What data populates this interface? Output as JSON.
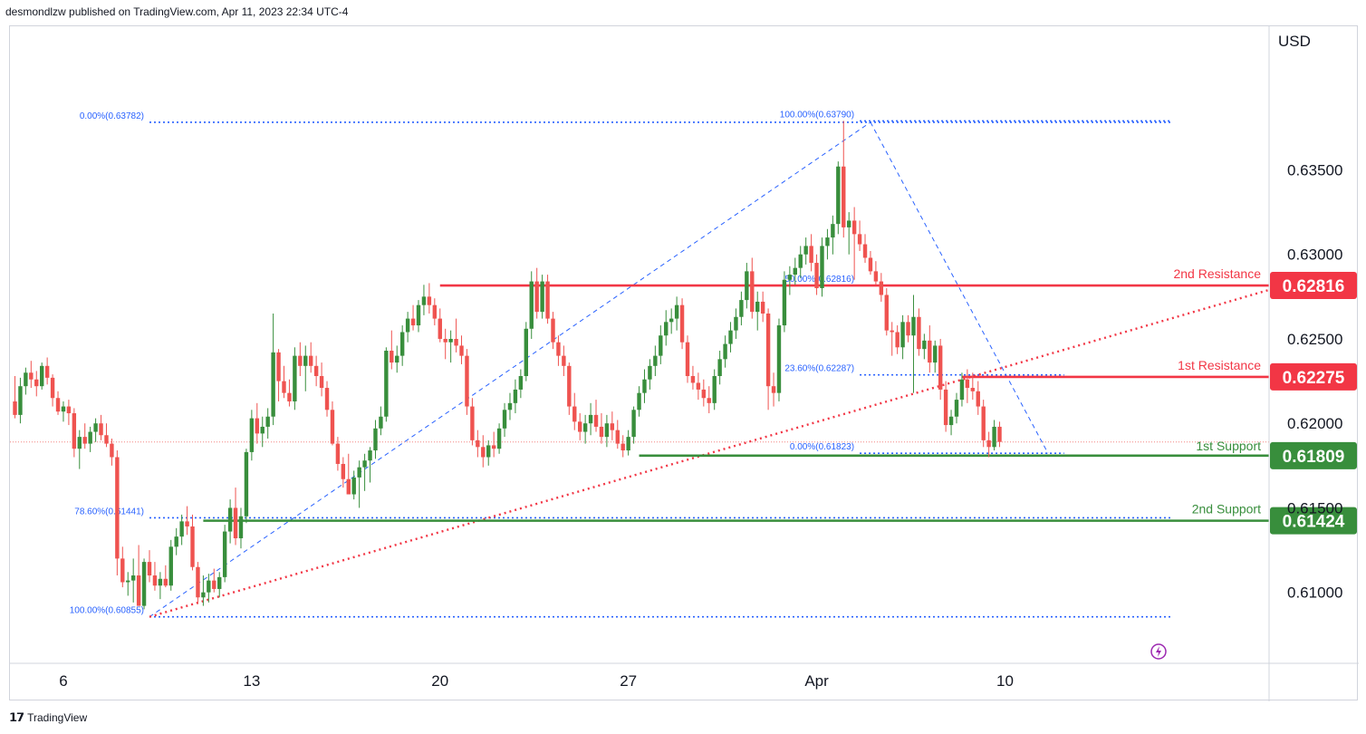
{
  "header": {
    "text": "desmondlzw published on TradingView.com, Apr 11, 2023 22:34 UTC-4"
  },
  "footer": {
    "brand": "TradingView",
    "logo": "tradingview-logo"
  },
  "colors": {
    "up": "#388e3c",
    "down": "#ef5350",
    "resistance": "#f23645",
    "support": "#388e3c",
    "fib": "#2962ff",
    "axis_text": "#131722"
  },
  "chart_data": {
    "type": "candlestick",
    "currency": "USD",
    "ylim": [
      0.6058,
      0.6435
    ],
    "y_ticks": [
      {
        "value": 0.635,
        "label": "0.63500"
      },
      {
        "value": 0.63,
        "label": "0.63000"
      },
      {
        "value": 0.625,
        "label": "0.62500"
      },
      {
        "value": 0.62,
        "label": "0.62000"
      },
      {
        "value": 0.615,
        "label": "0.61500"
      },
      {
        "value": 0.61,
        "label": "0.61000"
      }
    ],
    "x_ticks": [
      {
        "label": "6",
        "index": 9
      },
      {
        "label": "13",
        "index": 44
      },
      {
        "label": "20",
        "index": 79
      },
      {
        "label": "27",
        "index": 114
      },
      {
        "label": "Apr",
        "index": 149
      },
      {
        "label": "10",
        "index": 184
      }
    ],
    "candles": [
      [
        0.6213,
        0.6228,
        0.6203,
        0.6205
      ],
      [
        0.6205,
        0.6227,
        0.62,
        0.6222
      ],
      [
        0.6222,
        0.6233,
        0.6217,
        0.623
      ],
      [
        0.623,
        0.6237,
        0.6221,
        0.6226
      ],
      [
        0.6226,
        0.6231,
        0.6216,
        0.6222
      ],
      [
        0.6222,
        0.6236,
        0.622,
        0.6234
      ],
      [
        0.6234,
        0.6239,
        0.6223,
        0.6227
      ],
      [
        0.6227,
        0.6229,
        0.621,
        0.6215
      ],
      [
        0.6215,
        0.6219,
        0.6205,
        0.6207
      ],
      [
        0.6207,
        0.6213,
        0.6201,
        0.621
      ],
      [
        0.621,
        0.6214,
        0.6199,
        0.6206
      ],
      [
        0.6206,
        0.6209,
        0.618,
        0.6185
      ],
      [
        0.6185,
        0.6196,
        0.6173,
        0.6192
      ],
      [
        0.6192,
        0.62,
        0.6185,
        0.6188
      ],
      [
        0.6188,
        0.6198,
        0.6183,
        0.6195
      ],
      [
        0.6195,
        0.6203,
        0.6189,
        0.62
      ],
      [
        0.62,
        0.6205,
        0.619,
        0.6193
      ],
      [
        0.6193,
        0.62,
        0.6186,
        0.6188
      ],
      [
        0.6188,
        0.6191,
        0.6175,
        0.618
      ],
      [
        0.618,
        0.6184,
        0.611,
        0.612
      ],
      [
        0.612,
        0.6127,
        0.6103,
        0.6106
      ],
      [
        0.6106,
        0.6112,
        0.6098,
        0.6107
      ],
      [
        0.6107,
        0.612,
        0.6094,
        0.611
      ],
      [
        0.611,
        0.6128,
        0.6092,
        0.6092
      ],
      [
        0.6092,
        0.612,
        0.609,
        0.6118
      ],
      [
        0.6118,
        0.6125,
        0.6106,
        0.611
      ],
      [
        0.611,
        0.6118,
        0.6101,
        0.6104
      ],
      [
        0.6104,
        0.6112,
        0.6096,
        0.6108
      ],
      [
        0.6108,
        0.6116,
        0.6103,
        0.6104
      ],
      [
        0.6104,
        0.6131,
        0.6101,
        0.6127
      ],
      [
        0.6127,
        0.6138,
        0.6122,
        0.6133
      ],
      [
        0.6133,
        0.6146,
        0.6128,
        0.6142
      ],
      [
        0.6142,
        0.6151,
        0.6134,
        0.6139
      ],
      [
        0.6139,
        0.6146,
        0.6113,
        0.6115
      ],
      [
        0.6115,
        0.6118,
        0.6093,
        0.6097
      ],
      [
        0.6097,
        0.611,
        0.6092,
        0.61
      ],
      [
        0.61,
        0.6111,
        0.6094,
        0.6107
      ],
      [
        0.6107,
        0.6114,
        0.61,
        0.6102
      ],
      [
        0.6102,
        0.6112,
        0.6097,
        0.6109
      ],
      [
        0.6109,
        0.614,
        0.6106,
        0.6136
      ],
      [
        0.6136,
        0.6155,
        0.6129,
        0.615
      ],
      [
        0.615,
        0.6162,
        0.6128,
        0.6132
      ],
      [
        0.6132,
        0.615,
        0.6126,
        0.6145
      ],
      [
        0.6145,
        0.6185,
        0.6141,
        0.6183
      ],
      [
        0.6183,
        0.6208,
        0.6178,
        0.6203
      ],
      [
        0.6203,
        0.6212,
        0.6188,
        0.6194
      ],
      [
        0.6194,
        0.6204,
        0.6186,
        0.6198
      ],
      [
        0.6198,
        0.6209,
        0.6191,
        0.6204
      ],
      [
        0.6204,
        0.6265,
        0.6199,
        0.6242
      ],
      [
        0.6242,
        0.6244,
        0.6213,
        0.6225
      ],
      [
        0.6225,
        0.6234,
        0.6215,
        0.6218
      ],
      [
        0.6218,
        0.6226,
        0.621,
        0.6213
      ],
      [
        0.6213,
        0.6245,
        0.6208,
        0.624
      ],
      [
        0.624,
        0.6248,
        0.6228,
        0.6234
      ],
      [
        0.6234,
        0.6246,
        0.6219,
        0.624
      ],
      [
        0.624,
        0.6248,
        0.623,
        0.6234
      ],
      [
        0.6234,
        0.624,
        0.6222,
        0.6228
      ],
      [
        0.6228,
        0.6236,
        0.6216,
        0.6221
      ],
      [
        0.6221,
        0.6225,
        0.6204,
        0.6208
      ],
      [
        0.6208,
        0.6213,
        0.6187,
        0.6188
      ],
      [
        0.6188,
        0.6192,
        0.6172,
        0.6176
      ],
      [
        0.6176,
        0.618,
        0.6162,
        0.6167
      ],
      [
        0.6167,
        0.6182,
        0.6158,
        0.6158
      ],
      [
        0.6158,
        0.6172,
        0.6155,
        0.6168
      ],
      [
        0.6168,
        0.6178,
        0.615,
        0.6174
      ],
      [
        0.6174,
        0.6182,
        0.616,
        0.6178
      ],
      [
        0.6178,
        0.6186,
        0.6165,
        0.6184
      ],
      [
        0.6184,
        0.6202,
        0.6179,
        0.6197
      ],
      [
        0.6197,
        0.621,
        0.6193,
        0.6204
      ],
      [
        0.6204,
        0.6245,
        0.6201,
        0.6243
      ],
      [
        0.6243,
        0.6255,
        0.6232,
        0.6236
      ],
      [
        0.6236,
        0.6246,
        0.623,
        0.624
      ],
      [
        0.624,
        0.6258,
        0.6234,
        0.6254
      ],
      [
        0.6254,
        0.6266,
        0.6248,
        0.6262
      ],
      [
        0.6262,
        0.627,
        0.6255,
        0.6258
      ],
      [
        0.6258,
        0.6273,
        0.6254,
        0.627
      ],
      [
        0.627,
        0.6282,
        0.6264,
        0.6275
      ],
      [
        0.6275,
        0.6283,
        0.6265,
        0.627
      ],
      [
        0.627,
        0.6274,
        0.6258,
        0.6262
      ],
      [
        0.6262,
        0.6268,
        0.6248,
        0.625
      ],
      [
        0.625,
        0.6256,
        0.6238,
        0.6248
      ],
      [
        0.6248,
        0.6255,
        0.6236,
        0.625
      ],
      [
        0.625,
        0.6262,
        0.6242,
        0.6246
      ],
      [
        0.6246,
        0.6252,
        0.6235,
        0.624
      ],
      [
        0.624,
        0.6244,
        0.6205,
        0.621
      ],
      [
        0.621,
        0.6215,
        0.6187,
        0.619
      ],
      [
        0.619,
        0.6196,
        0.618,
        0.6186
      ],
      [
        0.6186,
        0.6193,
        0.6174,
        0.618
      ],
      [
        0.618,
        0.619,
        0.6175,
        0.6187
      ],
      [
        0.6187,
        0.6195,
        0.618,
        0.6185
      ],
      [
        0.6185,
        0.62,
        0.6182,
        0.6197
      ],
      [
        0.6197,
        0.6212,
        0.6192,
        0.6208
      ],
      [
        0.6208,
        0.6218,
        0.6202,
        0.6212
      ],
      [
        0.6212,
        0.6226,
        0.6206,
        0.622
      ],
      [
        0.622,
        0.6232,
        0.6215,
        0.6228
      ],
      [
        0.6228,
        0.626,
        0.6225,
        0.6256
      ],
      [
        0.6256,
        0.629,
        0.625,
        0.6284
      ],
      [
        0.6284,
        0.6292,
        0.6262,
        0.6266
      ],
      [
        0.6266,
        0.6288,
        0.6262,
        0.6284
      ],
      [
        0.6284,
        0.6288,
        0.6259,
        0.6262
      ],
      [
        0.6262,
        0.6266,
        0.6244,
        0.6248
      ],
      [
        0.6248,
        0.6252,
        0.6234,
        0.624
      ],
      [
        0.624,
        0.6246,
        0.6228,
        0.6234
      ],
      [
        0.6234,
        0.6236,
        0.6205,
        0.621
      ],
      [
        0.621,
        0.6218,
        0.6196,
        0.6201
      ],
      [
        0.6201,
        0.6206,
        0.619,
        0.6195
      ],
      [
        0.6195,
        0.6205,
        0.6188,
        0.62
      ],
      [
        0.62,
        0.6212,
        0.6193,
        0.6205
      ],
      [
        0.6205,
        0.6214,
        0.6195,
        0.6198
      ],
      [
        0.6198,
        0.6206,
        0.6188,
        0.6192
      ],
      [
        0.6192,
        0.6205,
        0.6186,
        0.62
      ],
      [
        0.62,
        0.6207,
        0.619,
        0.6196
      ],
      [
        0.6196,
        0.6202,
        0.6185,
        0.6188
      ],
      [
        0.6188,
        0.6193,
        0.618,
        0.6184
      ],
      [
        0.6184,
        0.6196,
        0.6181,
        0.6192
      ],
      [
        0.6192,
        0.621,
        0.6188,
        0.6208
      ],
      [
        0.6208,
        0.6222,
        0.6204,
        0.6218
      ],
      [
        0.6218,
        0.6232,
        0.6212,
        0.6226
      ],
      [
        0.6226,
        0.6238,
        0.622,
        0.6234
      ],
      [
        0.6234,
        0.6246,
        0.6228,
        0.624
      ],
      [
        0.624,
        0.6258,
        0.6235,
        0.6252
      ],
      [
        0.6252,
        0.6267,
        0.6246,
        0.626
      ],
      [
        0.626,
        0.6268,
        0.6253,
        0.6262
      ],
      [
        0.6262,
        0.6275,
        0.6255,
        0.627
      ],
      [
        0.627,
        0.6274,
        0.6244,
        0.6248
      ],
      [
        0.6248,
        0.6252,
        0.6224,
        0.6228
      ],
      [
        0.6228,
        0.6234,
        0.622,
        0.6224
      ],
      [
        0.6224,
        0.623,
        0.6214,
        0.622
      ],
      [
        0.622,
        0.6226,
        0.621,
        0.6215
      ],
      [
        0.6215,
        0.6222,
        0.6206,
        0.6212
      ],
      [
        0.6212,
        0.6232,
        0.6208,
        0.6228
      ],
      [
        0.6228,
        0.6243,
        0.6223,
        0.6238
      ],
      [
        0.6238,
        0.6252,
        0.6233,
        0.6247
      ],
      [
        0.6247,
        0.626,
        0.6242,
        0.6255
      ],
      [
        0.6255,
        0.6268,
        0.625,
        0.6263
      ],
      [
        0.6263,
        0.6278,
        0.6258,
        0.6273
      ],
      [
        0.6273,
        0.6295,
        0.6268,
        0.629
      ],
      [
        0.629,
        0.6298,
        0.6262,
        0.6266
      ],
      [
        0.6266,
        0.6278,
        0.6255,
        0.6272
      ],
      [
        0.6272,
        0.6278,
        0.626,
        0.6265
      ],
      [
        0.6265,
        0.6268,
        0.6208,
        0.6222
      ],
      [
        0.6222,
        0.623,
        0.621,
        0.6218
      ],
      [
        0.6218,
        0.6262,
        0.6213,
        0.6258
      ],
      [
        0.6258,
        0.629,
        0.6254,
        0.6285
      ],
      [
        0.6285,
        0.6293,
        0.6276,
        0.6288
      ],
      [
        0.6288,
        0.6298,
        0.6282,
        0.6292
      ],
      [
        0.6292,
        0.6305,
        0.6286,
        0.63
      ],
      [
        0.63,
        0.631,
        0.6294,
        0.6305
      ],
      [
        0.6305,
        0.6312,
        0.629,
        0.6295
      ],
      [
        0.6295,
        0.63,
        0.6276,
        0.628
      ],
      [
        0.628,
        0.631,
        0.6275,
        0.6305
      ],
      [
        0.6305,
        0.6315,
        0.6297,
        0.631
      ],
      [
        0.631,
        0.6323,
        0.63,
        0.6318
      ],
      [
        0.6318,
        0.6355,
        0.6312,
        0.6352
      ],
      [
        0.6352,
        0.6379,
        0.631,
        0.6316
      ],
      [
        0.6316,
        0.6325,
        0.63,
        0.632
      ],
      [
        0.632,
        0.6328,
        0.6285,
        0.6312
      ],
      [
        0.6312,
        0.632,
        0.6302,
        0.6306
      ],
      [
        0.6306,
        0.6312,
        0.6295,
        0.6298
      ],
      [
        0.6298,
        0.6302,
        0.6288,
        0.629
      ],
      [
        0.629,
        0.6296,
        0.6282,
        0.6284
      ],
      [
        0.6284,
        0.6289,
        0.6272,
        0.6276
      ],
      [
        0.6276,
        0.628,
        0.6252,
        0.6255
      ],
      [
        0.6255,
        0.626,
        0.624,
        0.6254
      ],
      [
        0.6254,
        0.6258,
        0.6241,
        0.6245
      ],
      [
        0.6245,
        0.6264,
        0.6238,
        0.626
      ],
      [
        0.626,
        0.6264,
        0.6248,
        0.6252
      ],
      [
        0.6252,
        0.6276,
        0.6218,
        0.6263
      ],
      [
        0.6263,
        0.6268,
        0.624,
        0.6244
      ],
      [
        0.6244,
        0.6253,
        0.6238,
        0.6249
      ],
      [
        0.6249,
        0.6258,
        0.623,
        0.6236
      ],
      [
        0.6236,
        0.6249,
        0.623,
        0.6246
      ],
      [
        0.6246,
        0.625,
        0.6214,
        0.622
      ],
      [
        0.622,
        0.6225,
        0.6195,
        0.6199
      ],
      [
        0.6199,
        0.6208,
        0.6193,
        0.6204
      ],
      [
        0.6204,
        0.6218,
        0.62,
        0.6214
      ],
      [
        0.6214,
        0.623,
        0.621,
        0.6226
      ],
      [
        0.6226,
        0.6232,
        0.6212,
        0.6221
      ],
      [
        0.6221,
        0.623,
        0.6214,
        0.6219
      ],
      [
        0.6219,
        0.6225,
        0.6205,
        0.621
      ],
      [
        0.621,
        0.6214,
        0.6186,
        0.619
      ],
      [
        0.619,
        0.6195,
        0.618,
        0.6186
      ],
      [
        0.6186,
        0.6202,
        0.6184,
        0.6198
      ],
      [
        0.6198,
        0.6201,
        0.6186,
        0.6189
      ]
    ],
    "levels": [
      {
        "name": "2nd Resistance",
        "value": 0.62816,
        "label": "0.62816",
        "kind": "resistance",
        "from_index": 79
      },
      {
        "name": "1st Resistance",
        "value": 0.62275,
        "label": "0.62275",
        "kind": "resistance",
        "from_index": 176
      },
      {
        "name": "1st Support",
        "value": 0.61809,
        "label": "0.61809",
        "kind": "support",
        "from_index": 116
      },
      {
        "name": "2nd Support",
        "value": 0.61424,
        "label": "0.61424",
        "kind": "support",
        "from_index": 35
      }
    ],
    "fib_labels": [
      {
        "text": "0.00%(0.63782)",
        "value": 0.63782,
        "from_index": 25,
        "to_index": 215
      },
      {
        "text": "78.60%(0.61441)",
        "value": 0.61441,
        "from_index": 25,
        "to_index": 215
      },
      {
        "text": "100.00%(0.60855)",
        "value": 0.60855,
        "from_index": 25,
        "to_index": 215
      },
      {
        "text": "100.00%(0.63790)",
        "value": 0.6379,
        "from_index": 157,
        "to_index": 215
      },
      {
        "text": "50.00%(0.62816)",
        "value": 0.62816,
        "from_index": 157,
        "to_index": 215
      },
      {
        "text": "23.60%(0.62287)",
        "value": 0.62287,
        "from_index": 157,
        "to_index": 195
      },
      {
        "text": "0.00%(0.61823)",
        "value": 0.61823,
        "from_index": 157,
        "to_index": 195
      }
    ],
    "fib_lines": [
      {
        "from": [
          25,
          0.60855
        ],
        "to": [
          159,
          0.63782
        ]
      },
      {
        "from": [
          159,
          0.63782
        ],
        "to": [
          192,
          0.61823
        ]
      }
    ],
    "trendline": {
      "from": [
        25,
        0.60855
      ],
      "to": [
        215,
        0.6279
      ]
    },
    "current_price": 0.6189
  }
}
